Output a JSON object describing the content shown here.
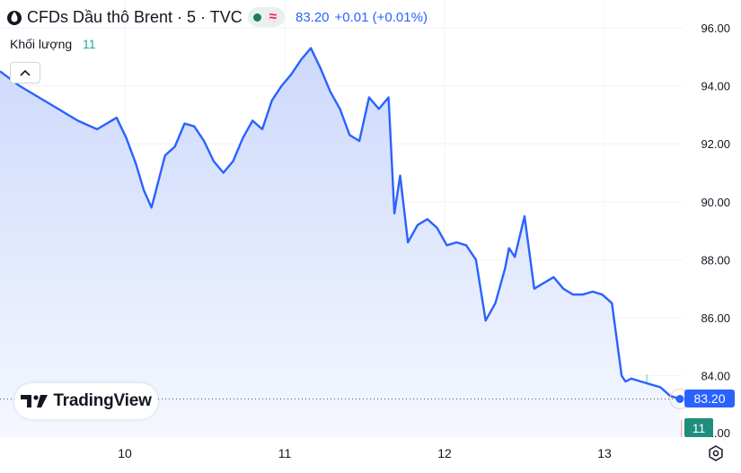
{
  "header": {
    "title": "CFDs Dầu thô Brent · 5 · TVC",
    "last_price": "83.20",
    "change": "+0.01 (+0.01%)",
    "status_icon": "market-open-dot",
    "wave_icon": "≈"
  },
  "volume_indicator": {
    "label": "Khối lượng",
    "value": "11"
  },
  "brand": {
    "text": "TradingView"
  },
  "axis": {
    "price_ticks": [
      "96.00",
      "94.00",
      "92.00",
      "90.00",
      "88.00",
      "86.00",
      "84.00",
      "82.00"
    ],
    "date_ticks": [
      "10",
      "11",
      "12",
      "13"
    ]
  },
  "current_price_label": "83.20",
  "volume_badge": "11",
  "colors": {
    "line": "#2962ff",
    "area_top": "#cdd9fb",
    "area_bottom": "#f5f8ff",
    "volume_up": "#26a69a",
    "volume_down": "#ef5350",
    "accent": "#2962ff"
  },
  "chart_data": {
    "type": "area",
    "series": [
      {
        "x": [
          0.0,
          0.1,
          0.2,
          0.3,
          0.4,
          0.5,
          0.6,
          0.65,
          0.7,
          0.74,
          0.78,
          0.85,
          0.9,
          0.95,
          1.0,
          1.05,
          1.1,
          1.15,
          1.2,
          1.25,
          1.3,
          1.35,
          1.4,
          1.45,
          1.5,
          1.55,
          1.6,
          1.65,
          1.7,
          1.75,
          1.8,
          1.85,
          1.9,
          1.95,
          2.0,
          2.03,
          2.06,
          2.1,
          2.15,
          2.2,
          2.25,
          2.3,
          2.35,
          2.4,
          2.45,
          2.5,
          2.55,
          2.6,
          2.62,
          2.65,
          2.7,
          2.75,
          2.8,
          2.85,
          2.9,
          2.95,
          3.0,
          3.05,
          3.1,
          3.15,
          3.2,
          3.22,
          3.25,
          3.3,
          3.35,
          3.4,
          3.45,
          3.5
        ],
        "values": [
          94.5,
          94.0,
          93.6,
          93.2,
          92.8,
          92.5,
          92.9,
          92.2,
          91.3,
          90.4,
          89.8,
          91.6,
          91.9,
          92.7,
          92.6,
          92.1,
          91.4,
          91.0,
          91.4,
          92.2,
          92.8,
          92.5,
          93.5,
          94.0,
          94.4,
          94.9,
          95.3,
          94.6,
          93.8,
          93.2,
          92.3,
          92.1,
          93.6,
          93.2,
          93.6,
          89.6,
          90.9,
          88.6,
          89.2,
          89.4,
          89.1,
          88.5,
          88.6,
          88.5,
          88.0,
          85.9,
          86.5,
          87.7,
          88.4,
          88.1,
          89.5,
          87.0,
          87.2,
          87.4,
          87.0,
          86.8,
          86.8,
          86.9,
          86.8,
          86.5,
          84.0,
          83.8,
          83.9,
          83.8,
          83.7,
          83.6,
          83.3,
          83.2
        ]
      }
    ],
    "volume_note": "volume histogram bars at bottom",
    "xlabel": "",
    "ylabel": "",
    "ylim": [
      82.0,
      96.0
    ],
    "xticks": [
      "10",
      "11",
      "12",
      "13"
    ],
    "grid": true,
    "legend": "none"
  }
}
